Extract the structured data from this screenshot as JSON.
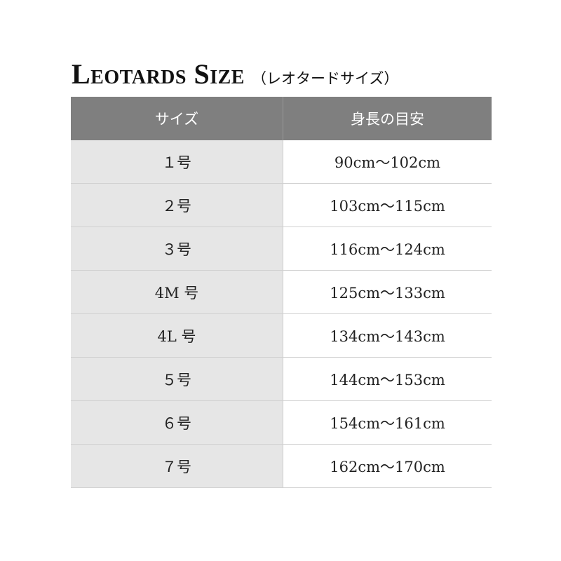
{
  "title": {
    "main": "Leotards Size",
    "sub": "（レオタードサイズ）"
  },
  "table": {
    "headers": [
      "サイズ",
      "身長の目安"
    ],
    "rows": [
      [
        "１号",
        "90cm〜102cm"
      ],
      [
        "２号",
        "103cm〜115cm"
      ],
      [
        "３号",
        "116cm〜124cm"
      ],
      [
        "4M 号",
        "125cm〜133cm"
      ],
      [
        "4L 号",
        "134cm〜143cm"
      ],
      [
        "５号",
        "144cm〜153cm"
      ],
      [
        "６号",
        "154cm〜161cm"
      ],
      [
        "７号",
        "162cm〜170cm"
      ]
    ]
  },
  "colors": {
    "header_bg": "#7f7f7f",
    "size_col_bg": "#e6e6e6"
  }
}
